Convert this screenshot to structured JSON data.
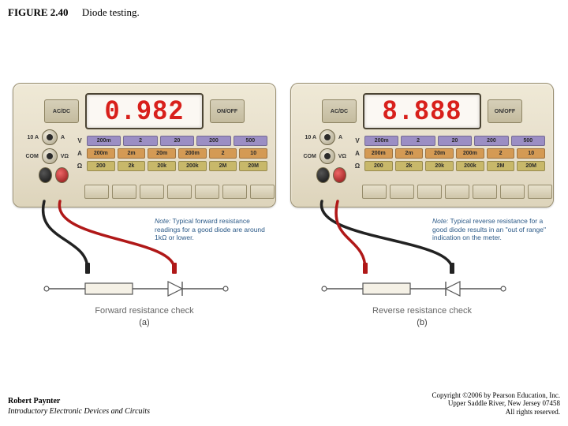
{
  "figure": {
    "number": "FIGURE 2.40",
    "title": "Diode testing."
  },
  "footer": {
    "author": "Robert Paynter",
    "book": "Introductory Electronic Devices and Circuits",
    "copyright1": "Copyright ©2006 by Pearson Education, Inc.",
    "copyright2": "Upper Saddle River, New Jersey 07458",
    "copyright3": "All rights reserved."
  },
  "meter": {
    "btn_acdc": "AC/DC",
    "btn_onoff": "ON/OFF",
    "display_color": "#d8201b",
    "ports": [
      {
        "label": "10 A",
        "sub": "A"
      },
      {
        "label": "COM",
        "sub": "VΩ"
      }
    ],
    "ranges": {
      "rows": [
        {
          "label": "V",
          "color": "#9b8ec4",
          "vals": [
            "200m",
            "2",
            "20",
            "200",
            "500"
          ]
        },
        {
          "label": "A",
          "color": "#d49a54",
          "vals": [
            "200m",
            "2m",
            "20m",
            "200m",
            "2",
            "10"
          ]
        },
        {
          "label": "Ω",
          "color": "#c8b86a",
          "vals": [
            "200",
            "2k",
            "20k",
            "200k",
            "2M",
            "20M"
          ]
        }
      ]
    },
    "button_count": 7
  },
  "panels": [
    {
      "display": "0.982",
      "caption_main": "Forward resistance check",
      "caption_sub": "(a)",
      "note_label": "Note:",
      "note_text": " Typical forward resistance readings for a good diode are around 1kΩ or lower.",
      "diode_forward": true
    },
    {
      "display": "8.888",
      "caption_main": "Reverse resistance check",
      "caption_sub": "(b)",
      "note_label": "Note:",
      "note_text": " Typical reverse resistance for a good diode results in an \"out of range\" indication on the meter.",
      "diode_forward": false
    }
  ],
  "colors": {
    "probe_black": "#222222",
    "probe_red": "#b01818",
    "wire": "#444444",
    "schematic": "#555555"
  }
}
